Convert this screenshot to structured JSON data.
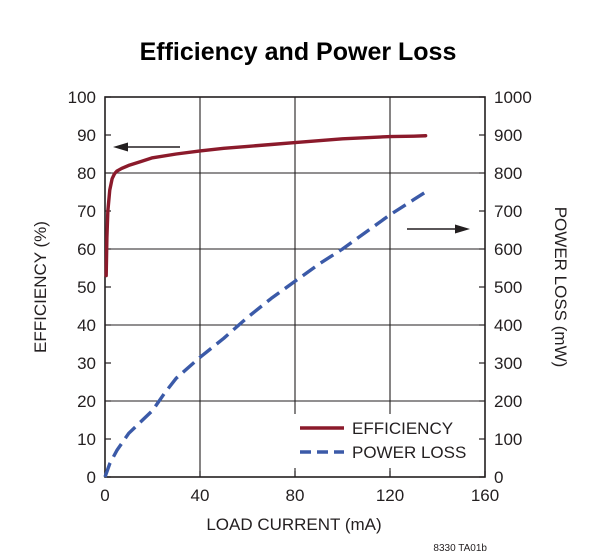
{
  "chart_data": {
    "type": "line",
    "title": "Efficiency and Power Loss",
    "xlabel": "LOAD CURRENT (mA)",
    "ylabel": "EFFICIENCY (%)",
    "y2label": "POWER LOSS (mW)",
    "xlim": [
      0,
      160
    ],
    "ylim": [
      0,
      100
    ],
    "y2lim": [
      0,
      1000
    ],
    "x_ticks": [
      "0",
      "40",
      "80",
      "120",
      "160"
    ],
    "y_ticks": [
      "0",
      "10",
      "20",
      "30",
      "40",
      "50",
      "60",
      "70",
      "80",
      "90",
      "100"
    ],
    "y2_ticks": [
      "0",
      "100",
      "200",
      "300",
      "400",
      "500",
      "600",
      "700",
      "800",
      "900",
      "1000"
    ],
    "grid": true,
    "legend_position": "bottom-right",
    "series": [
      {
        "name": "EFFICIENCY",
        "axis": "left",
        "style": "solid",
        "color": "#8b1a2b",
        "x": [
          0.5,
          0.8,
          1.2,
          2,
          3,
          4,
          5,
          7,
          10,
          15,
          20,
          30,
          40,
          50,
          60,
          70,
          80,
          90,
          100,
          110,
          120,
          130,
          135
        ],
        "y": [
          53,
          63,
          70,
          75.5,
          78.5,
          79.8,
          80.5,
          81.2,
          82,
          83,
          84,
          85,
          85.8,
          86.5,
          87,
          87.5,
          88,
          88.5,
          89,
          89.3,
          89.6,
          89.7,
          89.8
        ]
      },
      {
        "name": "POWER LOSS",
        "axis": "right",
        "style": "dashed",
        "color": "#3b5aa8",
        "x": [
          0,
          2,
          5,
          10,
          15,
          20,
          25,
          30,
          40,
          50,
          60,
          70,
          80,
          90,
          100,
          110,
          120,
          130,
          135
        ],
        "y": [
          0,
          35,
          70,
          115,
          145,
          175,
          220,
          260,
          315,
          365,
          420,
          470,
          515,
          560,
          600,
          645,
          690,
          730,
          750
        ]
      }
    ],
    "annotations": {
      "left_arrow": "efficiency uses left axis",
      "right_arrow": "power loss uses right axis"
    },
    "footnote": "8330 TA01b"
  }
}
